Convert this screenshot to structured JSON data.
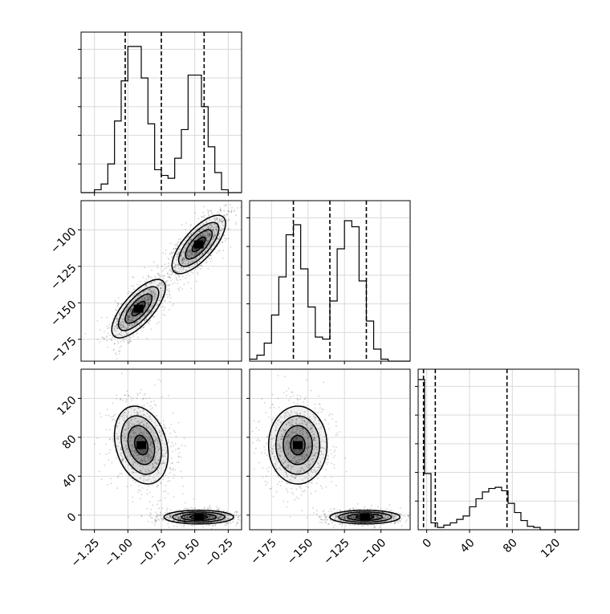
{
  "chart_data": [
    {
      "type": "histogram",
      "panel": "param0-hist",
      "xlim": [
        -1.35,
        -0.15
      ],
      "bin_edges": [
        -1.35,
        -1.3,
        -1.25,
        -1.2,
        -1.15,
        -1.1,
        -1.05,
        -1.0,
        -0.95,
        -0.9,
        -0.85,
        -0.8,
        -0.75,
        -0.7,
        -0.65,
        -0.6,
        -0.55,
        -0.5,
        -0.45,
        -0.4,
        -0.35,
        -0.3,
        -0.25,
        -0.2,
        -0.15
      ],
      "counts": [
        0,
        0,
        1,
        3,
        10,
        25,
        39,
        51,
        51,
        40,
        24,
        8,
        6,
        5,
        12,
        22,
        41,
        41,
        30,
        16,
        7,
        1,
        0,
        0
      ],
      "quantiles": [
        -1.02,
        -0.75,
        -0.43
      ],
      "ylim": [
        0,
        56
      ]
    },
    {
      "type": "histogram",
      "panel": "param1-hist",
      "xlim": [
        -190,
        -80
      ],
      "bin_edges": [
        -190,
        -185,
        -180,
        -175,
        -170,
        -165,
        -160,
        -155,
        -150,
        -145,
        -140,
        -135,
        -130,
        -125,
        -120,
        -115,
        -110,
        -105,
        -100,
        -95,
        -90,
        -85,
        -80
      ],
      "counts": [
        1,
        3,
        9,
        23,
        42,
        63,
        68,
        46,
        27,
        12,
        11,
        30,
        56,
        70,
        67,
        40,
        20,
        6,
        1,
        0,
        0,
        0
      ],
      "quantiles": [
        -160,
        -135,
        -110
      ],
      "ylim": [
        0,
        80
      ]
    },
    {
      "type": "histogram",
      "panel": "param2-hist",
      "xlim": [
        -8,
        142
      ],
      "bin_edges": [
        -8,
        -2,
        4,
        10,
        16,
        22,
        28,
        34,
        40,
        46,
        52,
        58,
        64,
        70,
        76,
        82,
        88,
        94,
        100,
        106,
        112,
        118,
        124,
        130,
        136,
        142
      ],
      "counts": [
        131,
        49,
        6,
        2,
        4,
        6,
        9,
        12,
        20,
        27,
        33,
        36,
        37,
        34,
        23,
        15,
        8,
        3,
        2,
        0,
        0,
        0,
        0,
        0,
        0
      ],
      "quantiles": [
        -3,
        8,
        75
      ],
      "ylim": [
        0,
        140
      ],
      "xticks": [
        "0",
        "40",
        "80",
        "120"
      ]
    },
    {
      "type": "scatter-density",
      "panel": "param1-vs-param0",
      "xlim": [
        -1.35,
        -0.15
      ],
      "ylim": [
        -190,
        -80
      ],
      "yticks": [
        "−100",
        "−125",
        "−150",
        "−175"
      ],
      "clusters": [
        {
          "center": [
            -0.92,
            -154
          ],
          "spread": [
            0.1,
            10
          ],
          "rho": 0.72
        },
        {
          "center": [
            -0.47,
            -110
          ],
          "spread": [
            0.1,
            10
          ],
          "rho": 0.72
        }
      ]
    },
    {
      "type": "scatter-density",
      "panel": "param2-vs-param0",
      "xlim": [
        -1.35,
        -0.15
      ],
      "ylim": [
        -15,
        150
      ],
      "yticks": [
        "120",
        "80",
        "40",
        "0"
      ],
      "xticks": [
        "−1.25",
        "−1.00",
        "−0.75",
        "−0.50",
        "−0.25"
      ],
      "clusters": [
        {
          "center": [
            -0.9,
            72
          ],
          "spread": [
            0.1,
            20
          ],
          "rho": -0.25
        },
        {
          "center": [
            -0.47,
            -2
          ],
          "spread": [
            0.13,
            3.5
          ],
          "rho": 0.0
        }
      ]
    },
    {
      "type": "scatter-density",
      "panel": "param2-vs-param1",
      "xlim": [
        -190,
        -80
      ],
      "ylim": [
        -15,
        150
      ],
      "xticks": [
        "−175",
        "−150",
        "−125",
        "−100"
      ],
      "clusters": [
        {
          "center": [
            -157,
            72
          ],
          "spread": [
            10,
            20
          ],
          "rho": 0.0
        },
        {
          "center": [
            -111,
            -2
          ],
          "spread": [
            12,
            3.5
          ],
          "rho": 0.0
        }
      ]
    }
  ]
}
